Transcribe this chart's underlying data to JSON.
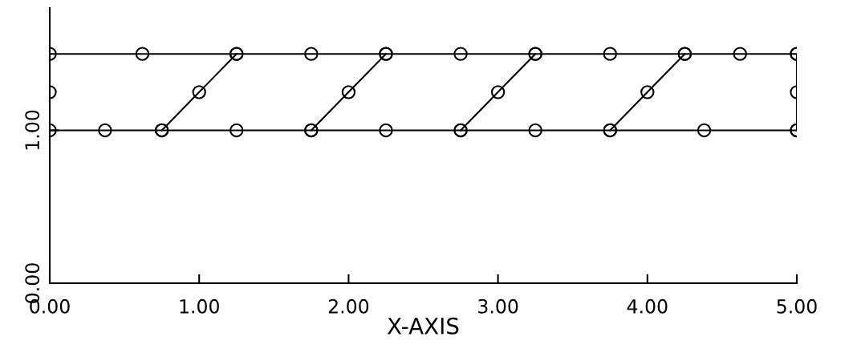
{
  "chart_data": {
    "type": "line",
    "xlabel": "X-AXIS",
    "marker": "circle",
    "line_style": "solid",
    "grid": false,
    "xlim": [
      0,
      5
    ],
    "ylim": [
      0,
      1.8
    ],
    "xticks": [
      {
        "value": 0,
        "label": "0.00"
      },
      {
        "value": 1,
        "label": "1.00"
      },
      {
        "value": 2,
        "label": "2.00"
      },
      {
        "value": 3,
        "label": "3.00"
      },
      {
        "value": 4,
        "label": "4.00"
      },
      {
        "value": 5,
        "label": "5.00"
      }
    ],
    "yticks": [
      {
        "value": 0,
        "label": "0.00"
      },
      {
        "value": 1,
        "label": "1.00"
      }
    ],
    "series": [
      {
        "color": "#000000",
        "x": [
          0,
          0.62,
          1.25,
          1.75,
          2.25,
          2.75,
          3.25,
          3.75,
          4.25,
          4.62,
          5
        ],
        "values": [
          1.5,
          1.5,
          1.5,
          1.5,
          1.5,
          1.5,
          1.5,
          1.5,
          1.5,
          1.5,
          1.5
        ]
      },
      {
        "color": "#000000",
        "x": [
          0,
          0.37,
          0.75,
          1.25,
          1.75,
          2.25,
          2.75,
          3.25,
          3.75,
          4.38,
          5
        ],
        "values": [
          1.0,
          1.0,
          1.0,
          1.0,
          1.0,
          1.0,
          1.0,
          1.0,
          1.0,
          1.0,
          1.0
        ]
      },
      {
        "color": "#000000",
        "x": [
          0.75,
          1.0,
          1.25
        ],
        "values": [
          1.0,
          1.25,
          1.5
        ]
      },
      {
        "color": "#000000",
        "x": [
          1.75,
          2.0,
          2.25
        ],
        "values": [
          1.0,
          1.25,
          1.5
        ]
      },
      {
        "color": "#000000",
        "x": [
          2.75,
          3.0,
          3.25
        ],
        "values": [
          1.0,
          1.25,
          1.5
        ]
      },
      {
        "color": "#000000",
        "x": [
          3.75,
          4.0,
          4.25
        ],
        "values": [
          1.0,
          1.25,
          1.5
        ]
      },
      {
        "color": "#000000",
        "x": [
          5,
          5,
          5
        ],
        "values": [
          1.0,
          1.25,
          1.5
        ]
      },
      {
        "type": "scatter",
        "color": "#000000",
        "x": [
          0
        ],
        "values": [
          1.25
        ]
      }
    ]
  }
}
